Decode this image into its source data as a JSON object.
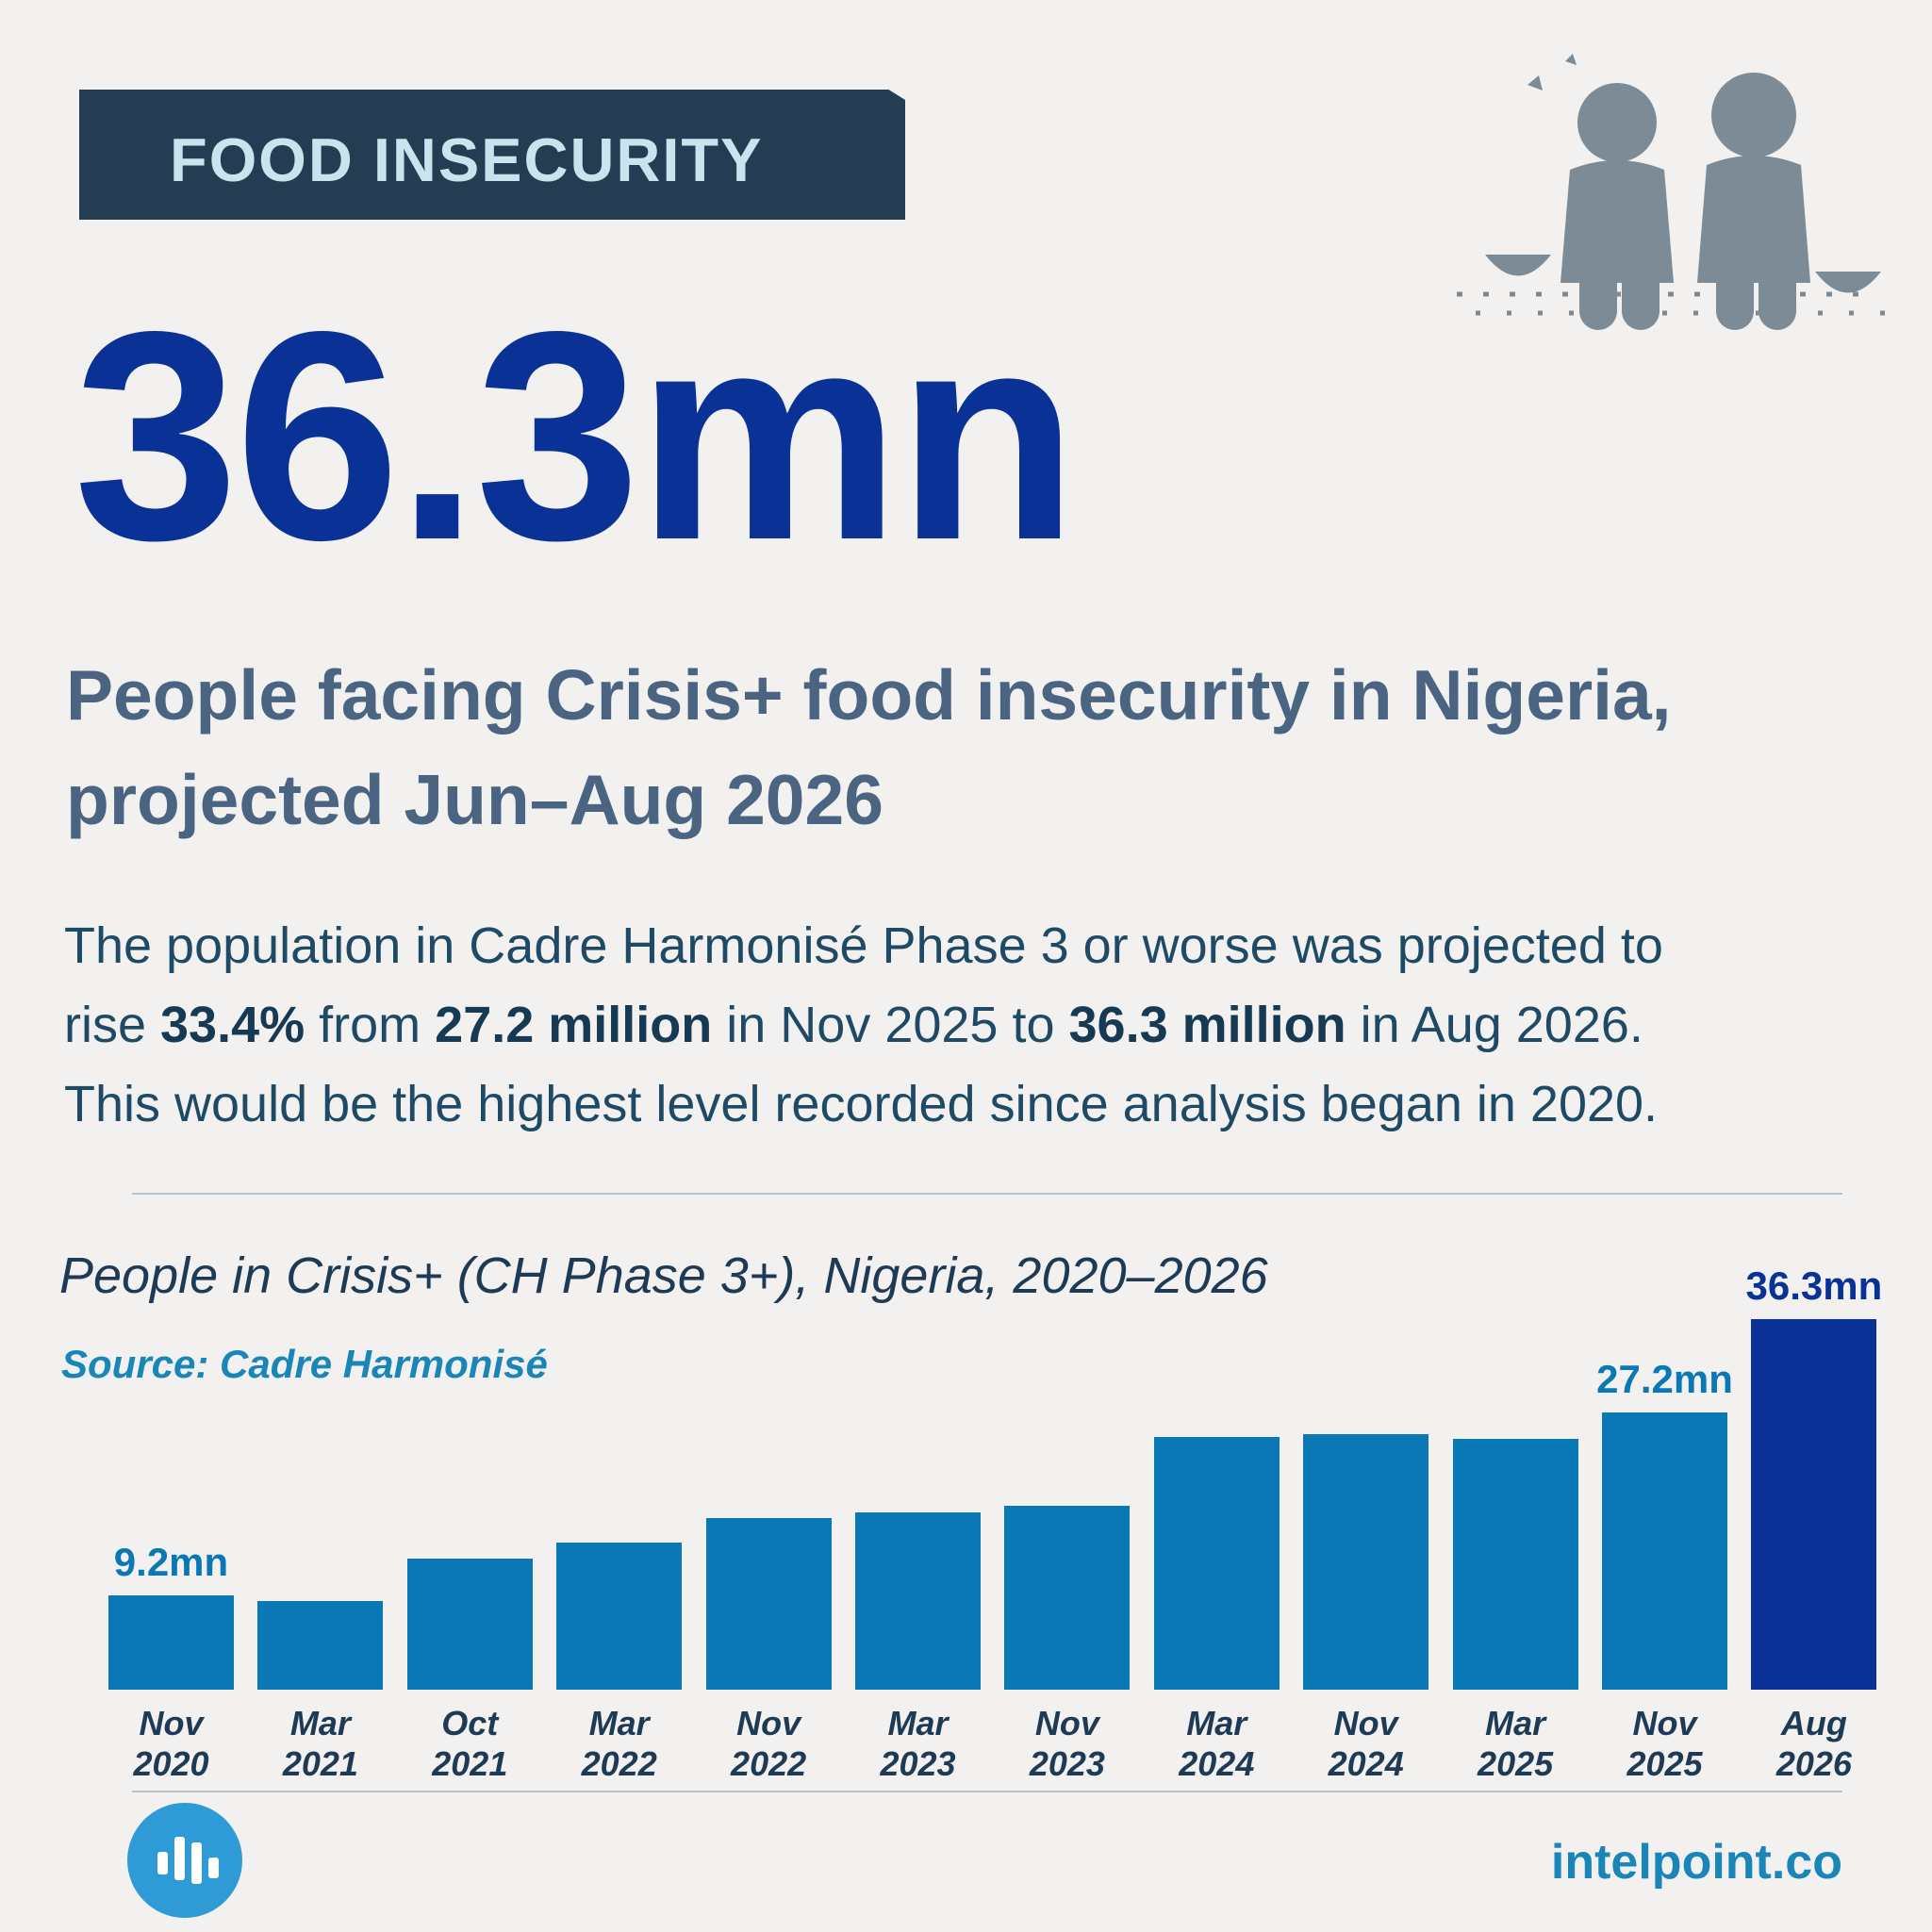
{
  "header": {
    "tag": "FOOD INSECURITY",
    "headline": "36.3mn",
    "subtitle": [
      "People facing Crisis+ food insecurity in Nigeria,",
      "projected Jun–Aug 2026"
    ],
    "paragraph": [
      [
        {
          "text": "The population in Cadre Harmonisé Phase 3 or worse was projected to",
          "bold": false
        }
      ],
      [
        {
          "text": "rise ",
          "bold": false
        },
        {
          "text": "33.4%",
          "bold": true
        },
        {
          "text": " from ",
          "bold": false
        },
        {
          "text": "27.2 million",
          "bold": true
        },
        {
          "text": " in Nov 2025 to ",
          "bold": false
        },
        {
          "text": "36.3 million",
          "bold": true
        },
        {
          "text": " in Aug 2026.",
          "bold": false
        }
      ],
      [
        {
          "text": "This would be the highest level recorded since analysis began in 2020.",
          "bold": false
        }
      ]
    ]
  },
  "chart_data": {
    "type": "bar",
    "title": "People in Crisis+ (CH Phase 3+), Nigeria, 2020–2026",
    "source": "Source: Cadre Harmonisé",
    "categories": [
      "Nov 2020",
      "Mar 2021",
      "Oct 2021",
      "Mar 2022",
      "Nov 2022",
      "Mar 2023",
      "Nov 2023",
      "Mar 2024",
      "Nov 2024",
      "Mar 2025",
      "Nov 2025",
      "Aug 2026"
    ],
    "values": [
      9.2,
      8.7,
      12.8,
      14.4,
      16.8,
      17.4,
      18.0,
      24.8,
      25.0,
      24.6,
      27.2,
      36.3
    ],
    "value_labels": [
      "9.2mn",
      null,
      null,
      null,
      null,
      null,
      null,
      null,
      null,
      null,
      "27.2mn",
      "36.3mn"
    ],
    "colors": [
      "#0a78b4",
      "#0a78b4",
      "#0a78b4",
      "#0a78b4",
      "#0a78b4",
      "#0a78b4",
      "#0a78b4",
      "#0a78b4",
      "#0a78b4",
      "#0a78b4",
      "#0a78b4",
      "#0a3296"
    ]
  },
  "footer": {
    "site": "intelpoint.co"
  }
}
